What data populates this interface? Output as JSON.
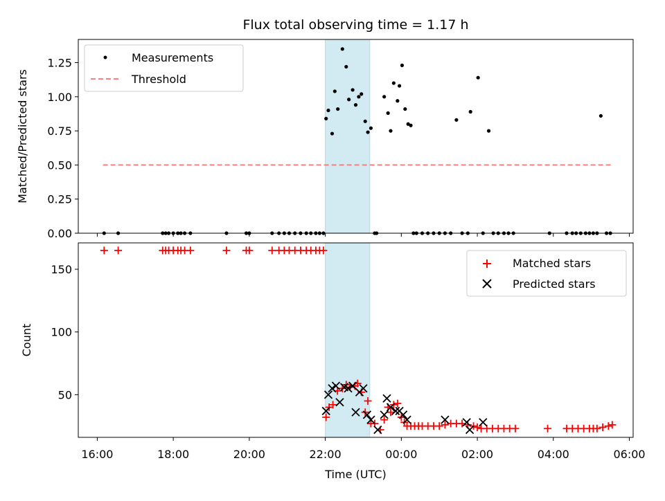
{
  "chart_data": [
    {
      "type": "scatter",
      "title": "Flux total observing time = 1.17 h",
      "xlabel": "",
      "ylabel": "Matched/Predicted stars",
      "x_unit": "hours since 16:00 UTC",
      "xlim": [
        -0.5,
        14.1
      ],
      "ylim": [
        0,
        1.42
      ],
      "yticks": [
        0.0,
        0.25,
        0.5,
        0.75,
        1.0,
        1.25
      ],
      "ytick_labels": [
        "0.00",
        "0.25",
        "0.50",
        "0.75",
        "1.00",
        "1.25"
      ],
      "shaded_span": [
        6.0,
        7.17
      ],
      "legend": {
        "placement": "top-left",
        "entries": [
          "Measurements",
          "Threshold"
        ]
      },
      "series": [
        {
          "name": "Measurements",
          "color": "#000000",
          "x": [
            0.18,
            0.55,
            1.72,
            1.8,
            1.88,
            2.0,
            2.12,
            2.2,
            2.3,
            2.45,
            3.4,
            3.92,
            4.0,
            4.6,
            4.78,
            4.92,
            5.05,
            5.2,
            5.35,
            5.5,
            5.62,
            5.75,
            5.85,
            5.95,
            6.02,
            6.08,
            6.18,
            6.25,
            6.33,
            6.45,
            6.55,
            6.62,
            6.72,
            6.8,
            6.88,
            6.95,
            7.05,
            7.12,
            7.2,
            7.3,
            7.35,
            7.55,
            7.65,
            7.72,
            7.8,
            7.9,
            7.95,
            8.02,
            8.1,
            8.18,
            8.25,
            8.32,
            8.4,
            8.55,
            8.7,
            8.85,
            9.0,
            9.15,
            9.3,
            9.45,
            9.6,
            9.75,
            9.82,
            10.02,
            10.15,
            10.3,
            10.42,
            10.55,
            10.7,
            10.82,
            10.95,
            11.9,
            12.35,
            12.5,
            12.6,
            12.72,
            12.85,
            12.95,
            13.05,
            13.15,
            13.25,
            13.4,
            13.5
          ],
          "y": [
            0,
            0,
            0,
            0,
            0,
            0,
            0,
            0,
            0,
            0,
            0,
            0,
            0,
            0,
            0,
            0,
            0,
            0,
            0,
            0,
            0,
            0,
            0,
            0,
            0.84,
            0.9,
            0.73,
            1.04,
            0.91,
            1.35,
            1.22,
            0.98,
            1.05,
            0.94,
            1.0,
            1.02,
            0.82,
            0.74,
            0.77,
            0,
            0,
            1.0,
            0.88,
            0.75,
            1.1,
            0.97,
            1.08,
            1.23,
            0.91,
            0.8,
            0.79,
            0,
            0,
            0,
            0,
            0,
            0,
            0,
            0,
            0.83,
            0,
            0,
            0.89,
            1.14,
            0,
            0.75,
            0,
            0,
            0,
            0,
            0,
            0,
            0,
            0,
            0,
            0,
            0,
            0,
            0,
            0,
            0.86,
            0,
            0
          ]
        },
        {
          "name": "Threshold",
          "color": "#ff7f7f",
          "style": "dashed",
          "x": [
            0.15,
            13.55
          ],
          "y": [
            0.5,
            0.5
          ]
        }
      ]
    },
    {
      "type": "scatter",
      "title": "",
      "xlabel": "Time (UTC)",
      "ylabel": "Count",
      "x_unit": "hours since 16:00 UTC",
      "xlim": [
        -0.5,
        14.1
      ],
      "ylim": [
        16,
        171
      ],
      "yticks": [
        50,
        100,
        150
      ],
      "ytick_labels": [
        "50",
        "100",
        "150"
      ],
      "xticks": [
        0,
        2,
        4,
        6,
        8,
        10,
        12,
        14
      ],
      "xtick_labels": [
        "16:00",
        "18:00",
        "20:00",
        "22:00",
        "00:00",
        "02:00",
        "04:00",
        "06:00"
      ],
      "shaded_span": [
        6.0,
        7.17
      ],
      "legend": {
        "placement": "top-right",
        "entries": [
          "Matched stars",
          "Predicted stars"
        ]
      },
      "series": [
        {
          "name": "Matched stars",
          "marker": "plus",
          "color": "#ff0000",
          "x": [
            0.18,
            0.55,
            1.72,
            1.8,
            1.88,
            2.0,
            2.12,
            2.2,
            2.3,
            2.45,
            3.4,
            3.92,
            4.0,
            4.6,
            4.78,
            4.92,
            5.05,
            5.2,
            5.35,
            5.5,
            5.62,
            5.75,
            5.85,
            5.95,
            6.02,
            6.1,
            6.2,
            6.32,
            6.45,
            6.55,
            6.65,
            6.78,
            6.85,
            6.95,
            7.05,
            7.12,
            7.2,
            7.3,
            7.45,
            7.55,
            7.65,
            7.72,
            7.8,
            7.9,
            8.0,
            8.08,
            8.15,
            8.25,
            8.35,
            8.45,
            8.55,
            8.7,
            8.85,
            9.0,
            9.15,
            9.3,
            9.45,
            9.6,
            9.75,
            9.9,
            10.0,
            10.1,
            10.25,
            10.4,
            10.55,
            10.7,
            10.85,
            11.0,
            11.85,
            12.35,
            12.5,
            12.65,
            12.8,
            12.95,
            13.05,
            13.15,
            13.3,
            13.45,
            13.55
          ],
          "y": [
            165,
            165,
            165,
            165,
            165,
            165,
            165,
            165,
            165,
            165,
            165,
            165,
            165,
            165,
            165,
            165,
            165,
            165,
            165,
            165,
            165,
            165,
            165,
            165,
            32,
            40,
            42,
            53,
            55,
            58,
            56,
            57,
            59,
            52,
            36,
            45,
            27,
            27,
            22,
            30,
            40,
            36,
            42,
            43,
            32,
            28,
            25,
            25,
            25,
            25,
            25,
            25,
            25,
            25,
            26,
            27,
            27,
            27,
            26,
            25,
            24,
            23,
            23,
            23,
            23,
            23,
            23,
            23,
            23,
            23,
            23,
            23,
            23,
            23,
            23,
            23,
            24,
            25,
            26
          ]
        },
        {
          "name": "Predicted stars",
          "marker": "x",
          "color": "#000000",
          "x": [
            6.02,
            6.08,
            6.18,
            6.28,
            6.38,
            6.5,
            6.6,
            6.72,
            6.8,
            6.9,
            7.0,
            7.1,
            7.2,
            7.38,
            7.55,
            7.62,
            7.72,
            7.85,
            7.95,
            8.05,
            8.15,
            9.15,
            9.72,
            9.8,
            10.15
          ],
          "y": [
            37,
            50,
            55,
            57,
            44,
            56,
            55,
            57,
            36,
            52,
            55,
            34,
            30,
            22,
            34,
            47,
            40,
            37,
            37,
            34,
            30,
            30,
            28,
            22,
            28
          ]
        }
      ]
    }
  ]
}
